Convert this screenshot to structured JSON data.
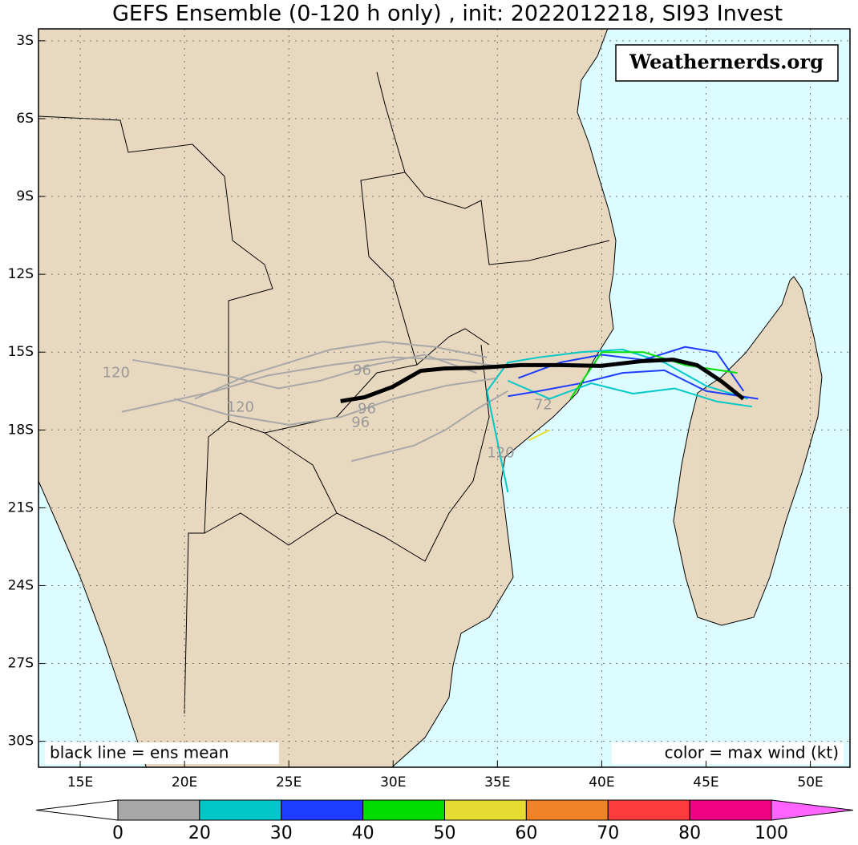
{
  "title": "GEFS Ensemble (0-120 h only) , init: 2022012218, SI93 Invest",
  "watermark": "Weathernerds.org",
  "note_left": "black line = ens mean",
  "note_right": "color = max wind (kt)",
  "map": {
    "lonlim": [
      13,
      51.9
    ],
    "latlim": [
      -31,
      -2.54
    ],
    "grid": true,
    "ocean_color": "#dcfcff",
    "land_color": "#e8d8c0",
    "lonticks": [
      {
        "value": 15,
        "label": "15E"
      },
      {
        "value": 20,
        "label": "20E"
      },
      {
        "value": 25,
        "label": "25E"
      },
      {
        "value": 30,
        "label": "30E"
      },
      {
        "value": 35,
        "label": "35E"
      },
      {
        "value": 40,
        "label": "40E"
      },
      {
        "value": 45,
        "label": "45E"
      },
      {
        "value": 50,
        "label": "50E"
      }
    ],
    "latticks": [
      {
        "value": -3,
        "label": "3S"
      },
      {
        "value": -6,
        "label": "6S"
      },
      {
        "value": -9,
        "label": "9S"
      },
      {
        "value": -12,
        "label": "12S"
      },
      {
        "value": -15,
        "label": "15S"
      },
      {
        "value": -18,
        "label": "18S"
      },
      {
        "value": -21,
        "label": "21S"
      },
      {
        "value": -24,
        "label": "24S"
      },
      {
        "value": -27,
        "label": "27S"
      },
      {
        "value": -30,
        "label": "30S"
      }
    ],
    "members": [
      {
        "color": "#a8a8a8",
        "lon": [
          35.5,
          33,
          30,
          27,
          24,
          21.5,
          17
        ],
        "lat": [
          -15.6,
          -15.3,
          -15.2,
          -15.5,
          -15.9,
          -16.5,
          -17.3
        ]
      },
      {
        "color": "#a8a8a8",
        "lon": [
          35,
          32.5,
          30,
          27.5,
          25,
          22,
          19.5
        ],
        "lat": [
          -16,
          -16.3,
          -16.8,
          -17.5,
          -17.8,
          -17.4,
          -16.8
        ]
      },
      {
        "color": "#a8a8a8",
        "lon": [
          34.5,
          32,
          29.5,
          27,
          25,
          23,
          20.5
        ],
        "lat": [
          -15.2,
          -14.8,
          -14.6,
          -14.9,
          -15.4,
          -15.9,
          -16.8
        ]
      },
      {
        "color": "#a8a8a8",
        "lon": [
          34,
          31.5,
          29,
          26.5,
          24.5,
          22,
          17.5
        ],
        "lat": [
          -15.8,
          -15.1,
          -15.5,
          -16.1,
          -16.4,
          -15.9,
          -15.3
        ]
      },
      {
        "color": "#a8a8a8",
        "lon": [
          35.5,
          34,
          32.5,
          31,
          29.5,
          28
        ],
        "lat": [
          -16.5,
          -17.2,
          -18,
          -18.6,
          -18.9,
          -19.2
        ]
      },
      {
        "color": "#00c8c8",
        "lon": [
          47,
          45,
          43,
          41,
          39,
          37,
          35.5,
          34.5,
          35.5
        ],
        "lat": [
          -16.8,
          -16.3,
          -15.4,
          -14.9,
          -15,
          -15.2,
          -15.4,
          -16.5,
          -20.4
        ]
      },
      {
        "color": "#00c8c8",
        "lon": [
          47.2,
          45.5,
          43.5,
          41.5,
          39.5,
          37.5,
          35.5
        ],
        "lat": [
          -17.1,
          -16.9,
          -16.4,
          -16.6,
          -16.2,
          -16.8,
          -16.1
        ]
      },
      {
        "color": "#1e3cff",
        "lon": [
          47.5,
          45,
          43,
          41,
          39,
          37,
          35.5
        ],
        "lat": [
          -16.8,
          -16.5,
          -15.7,
          -15.8,
          -16.2,
          -16.5,
          -16.7
        ]
      },
      {
        "color": "#1e3cff",
        "lon": [
          46.8,
          45.5,
          44,
          42,
          40,
          38,
          36
        ],
        "lat": [
          -16.5,
          -15,
          -14.8,
          -15.3,
          -15.1,
          -15.4,
          -16
        ]
      },
      {
        "color": "#00dc00",
        "lon": [
          46.5,
          44,
          42,
          40,
          38.5
        ],
        "lat": [
          -15.8,
          -15.5,
          -15,
          -15,
          -16.8
        ]
      },
      {
        "color": "#e6dc32",
        "lon": [
          37.5,
          36.5
        ],
        "lat": [
          -18,
          -18.4
        ]
      }
    ],
    "mean_track": {
      "color": "#000000",
      "lon": [
        27.48,
        28.63,
        29.97,
        31.32,
        32.47,
        34.2,
        36.12,
        38.04,
        39.96,
        41.88,
        43.42,
        44.57,
        45.73,
        46.79
      ],
      "lat": [
        -16.89,
        -16.74,
        -16.34,
        -15.72,
        -15.63,
        -15.6,
        -15.5,
        -15.5,
        -15.53,
        -15.35,
        -15.29,
        -15.5,
        -16.12,
        -16.8
      ]
    },
    "hour_labels": [
      {
        "text": "120",
        "lon": 16.72,
        "lat": -15.81
      },
      {
        "text": "96",
        "lon": 28.51,
        "lat": -15.72
      },
      {
        "text": "72",
        "lon": 37.19,
        "lat": -17.05
      },
      {
        "text": "96",
        "lon": 28.74,
        "lat": -17.2
      },
      {
        "text": "120",
        "lon": 22.68,
        "lat": -17.14
      },
      {
        "text": "120",
        "lon": 35.16,
        "lat": -18.9
      },
      {
        "text": "96",
        "lon": 28.44,
        "lat": -17.73
      }
    ]
  },
  "colorbar": {
    "boundaries": [
      0,
      20,
      30,
      40,
      50,
      60,
      70,
      80,
      100
    ],
    "colors": [
      "#ffffff",
      "#a8a8a8",
      "#00c8c8",
      "#1e3cff",
      "#00dc00",
      "#e6dc32",
      "#f08228",
      "#fa3c3c",
      "#f00082",
      "#ff64ff"
    ]
  }
}
